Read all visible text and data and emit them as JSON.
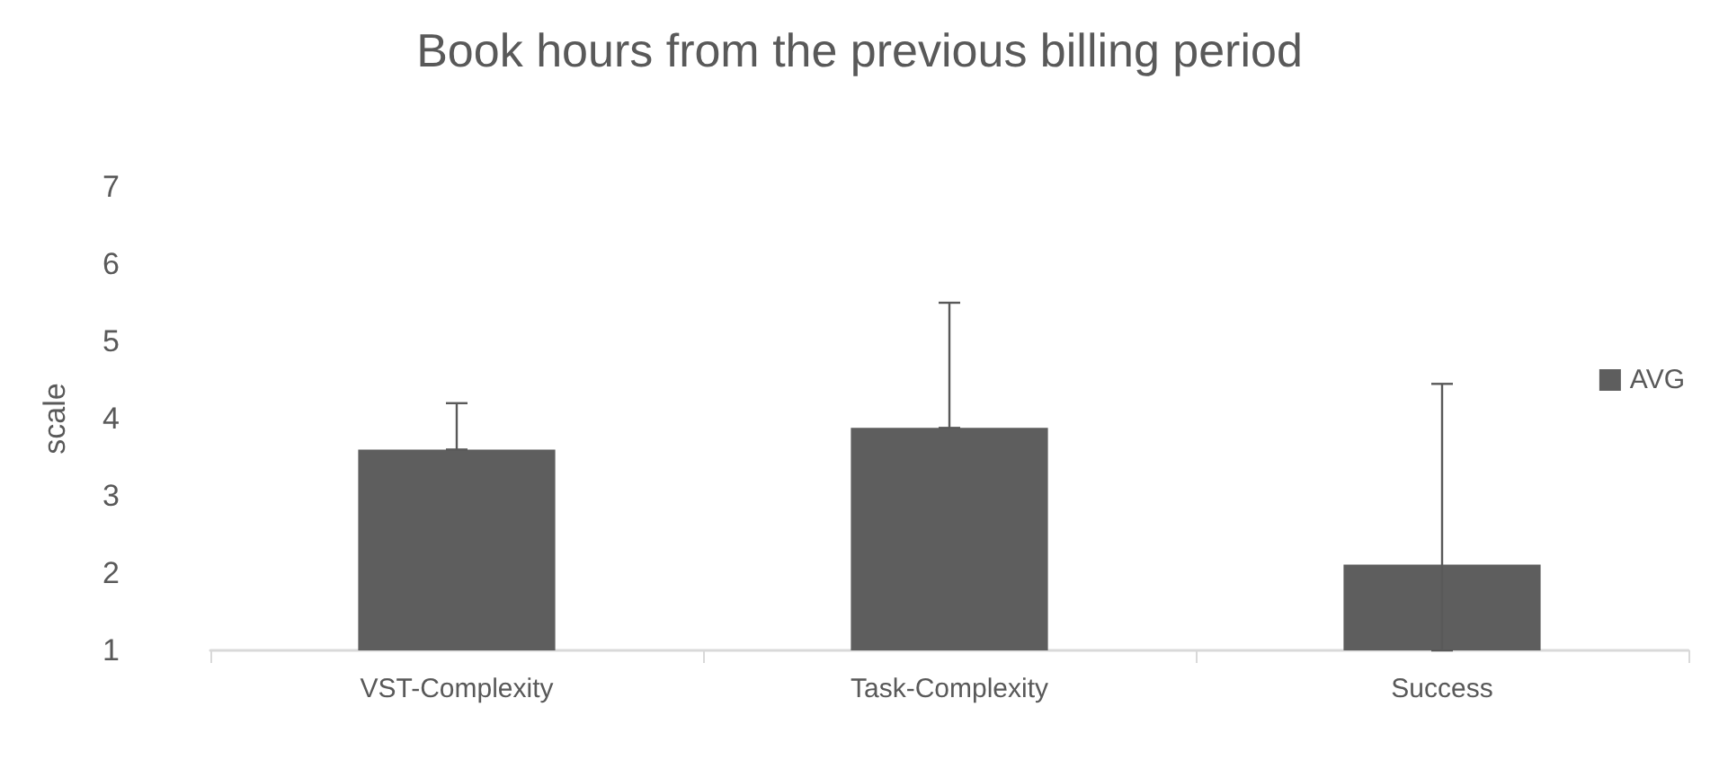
{
  "chart_data": {
    "type": "bar",
    "title": "Book hours from the previous billing period",
    "ylabel": "scale",
    "categories": [
      "VST-Complexity",
      "Task-Complexity",
      "Success"
    ],
    "series": [
      {
        "name": "AVG",
        "color": "#5e5e5e",
        "values": [
          3.6,
          3.88,
          2.11
        ],
        "errors": [
          [
            3.6,
            4.2
          ],
          [
            3.88,
            5.5
          ],
          [
            1,
            4.45
          ]
        ]
      }
    ],
    "ylim": [
      1,
      7
    ],
    "yticks": [
      1,
      2,
      3,
      4,
      5,
      6,
      7
    ],
    "grid": false,
    "legend": "right"
  }
}
